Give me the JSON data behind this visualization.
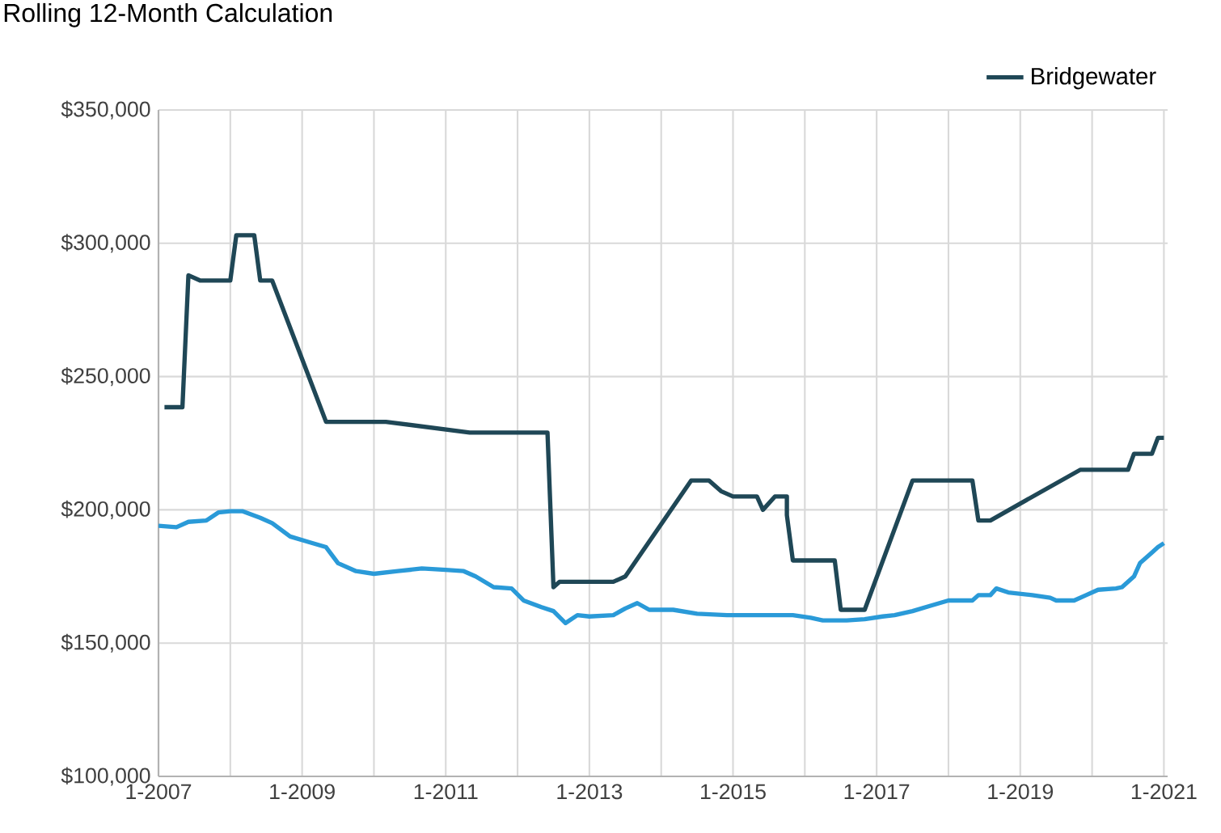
{
  "chart_data": {
    "type": "line",
    "title": "Rolling 12-Month Calculation",
    "xlim": [
      "2007-01-01",
      "2021-01-20"
    ],
    "xticks": [
      {
        "value": "2007-01",
        "label": "1-2007"
      },
      {
        "value": "2008-01",
        "label": null
      },
      {
        "value": "2009-01",
        "label": "1-2009"
      },
      {
        "value": "2010-01",
        "label": null
      },
      {
        "value": "2011-01",
        "label": "1-2011"
      },
      {
        "value": "2012-01",
        "label": null
      },
      {
        "value": "2013-01",
        "label": "1-2013"
      },
      {
        "value": "2014-01",
        "label": null
      },
      {
        "value": "2015-01",
        "label": "1-2015"
      },
      {
        "value": "2016-01",
        "label": null
      },
      {
        "value": "2017-01",
        "label": "1-2017"
      },
      {
        "value": "2018-01",
        "label": null
      },
      {
        "value": "2019-01",
        "label": "1-2019"
      },
      {
        "value": "2020-01",
        "label": null
      },
      {
        "value": "2021-01",
        "label": "1-2021"
      }
    ],
    "ylim": [
      100000,
      350000
    ],
    "yticks": [
      {
        "value": 100000,
        "label": "$100,000"
      },
      {
        "value": 150000,
        "label": "$150,000"
      },
      {
        "value": 200000,
        "label": "$200,000"
      },
      {
        "value": 250000,
        "label": "$250,000"
      },
      {
        "value": 300000,
        "label": "$300,000"
      },
      {
        "value": 350000,
        "label": "$350,000"
      }
    ],
    "grid": true,
    "legend": "top right",
    "marker": "none",
    "line_style": "solid",
    "series": [
      {
        "color": "#2a9ad8",
        "x": [
          "2007-01",
          "2007-04",
          "2007-06",
          "2007-09",
          "2007-11",
          "2008-01",
          "2008-03",
          "2008-06",
          "2008-08",
          "2008-11",
          "2009-02",
          "2009-05",
          "2009-07",
          "2009-10",
          "2010-01",
          "2010-05",
          "2010-09",
          "2011-01",
          "2011-04",
          "2011-06",
          "2011-09",
          "2011-12",
          "2012-02",
          "2012-05",
          "2012-07",
          "2012-09",
          "2012-11",
          "2013-01",
          "2013-05",
          "2013-07",
          "2013-09",
          "2013-11",
          "2014-03",
          "2014-07",
          "2014-12",
          "2015-11",
          "2016-02",
          "2016-04",
          "2016-08",
          "2016-11",
          "2017-02",
          "2017-04",
          "2017-07",
          "2017-10",
          "2018-01",
          "2018-05",
          "2018-06",
          "2018-08",
          "2018-09",
          "2018-11",
          "2019-03",
          "2019-06",
          "2019-07",
          "2019-10",
          "2019-12",
          "2020-02",
          "2020-05",
          "2020-06",
          "2020-08",
          "2020-09",
          "2020-11",
          "2020-12",
          "2021-01"
        ],
        "values": [
          194000,
          193500,
          195500,
          196000,
          199000,
          199500,
          199500,
          197000,
          195000,
          190000,
          188000,
          186000,
          180000,
          177000,
          176000,
          177000,
          178000,
          177500,
          177000,
          175000,
          171000,
          170500,
          166000,
          163500,
          162000,
          157500,
          160500,
          160000,
          160500,
          163000,
          165000,
          162500,
          162500,
          161000,
          160500,
          160500,
          159500,
          158500,
          158500,
          159000,
          160000,
          160500,
          162000,
          164000,
          166000,
          166000,
          168000,
          168000,
          170500,
          169000,
          168000,
          167000,
          166000,
          166000,
          168000,
          170000,
          170500,
          171000,
          175000,
          180000,
          184000,
          186000,
          187500
        ]
      },
      {
        "name": "Bridgewater",
        "color": "#1f4756",
        "x": [
          "2007-02",
          "2007-05",
          "2007-06",
          "2007-08",
          "2008-01",
          "2008-02",
          "2008-05",
          "2008-06",
          "2008-08",
          "2009-05",
          "2010-03",
          "2011-05",
          "2012-06",
          "2012-07",
          "2012-08",
          "2013-05",
          "2013-07",
          "2014-06",
          "2014-09",
          "2014-11",
          "2015-01",
          "2015-05",
          "2015-06",
          "2015-08",
          "2015-10",
          "2015-10",
          "2015-11",
          "2016-06",
          "2016-07",
          "2016-11",
          "2017-07",
          "2018-05",
          "2018-06",
          "2018-08",
          "2019-11",
          "2020-07",
          "2020-08",
          "2020-11",
          "2020-12",
          "2021-01"
        ],
        "values": [
          238500,
          238500,
          288000,
          286000,
          286000,
          303000,
          303000,
          286000,
          286000,
          233000,
          233000,
          229000,
          229000,
          171000,
          173000,
          173000,
          175000,
          211000,
          211000,
          207000,
          205000,
          205000,
          200000,
          205000,
          205000,
          198000,
          181000,
          181000,
          162500,
          162500,
          211000,
          211000,
          196000,
          196000,
          215000,
          215000,
          221000,
          221000,
          227000,
          227000
        ]
      }
    ]
  }
}
